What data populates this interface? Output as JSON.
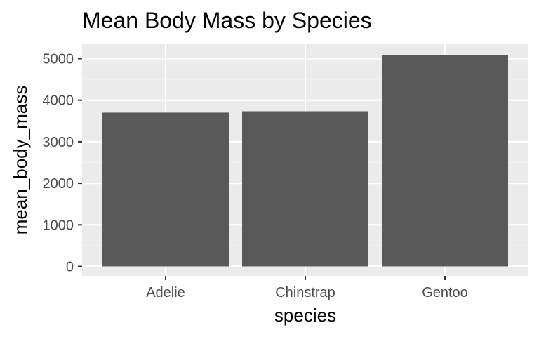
{
  "chart_data": {
    "type": "bar",
    "title": "Mean Body Mass by Species",
    "xlabel": "species",
    "ylabel": "mean_body_mass",
    "categories": [
      "Adelie",
      "Chinstrap",
      "Gentoo"
    ],
    "values": [
      3701,
      3733,
      5076
    ],
    "ylim": [
      0,
      5250
    ],
    "yticks": [
      0,
      1000,
      2000,
      3000,
      4000,
      5000
    ],
    "grid": true,
    "legend": "none",
    "colors": {
      "bar": "#595959",
      "panel": "#ebebeb",
      "grid_major": "#ffffff",
      "grid_minor": "#f2f2f2",
      "tick_label": "#4d4d4d",
      "tick_mark": "#333333"
    }
  }
}
